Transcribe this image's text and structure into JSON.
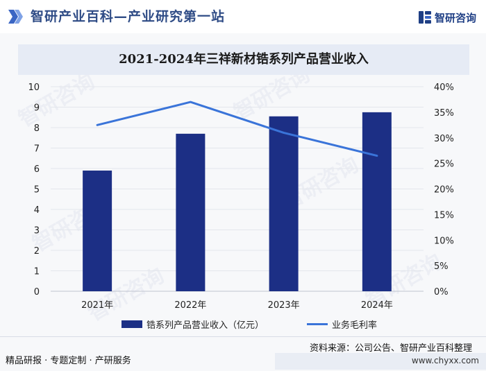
{
  "header": {
    "title": "智研产业百科—产业研究第一站",
    "logo_text": "智研咨询"
  },
  "watermark_text": "智研咨询",
  "chart_data": {
    "type": "bar",
    "title": "2021-2024年三祥新材锆系列产品营业收入",
    "categories": [
      "2021年",
      "2022年",
      "2023年",
      "2024年"
    ],
    "series": [
      {
        "name": "锆系列产品营业收入（亿元）",
        "type": "bar",
        "axis": "left",
        "color": "#1c2f85",
        "values": [
          5.9,
          7.7,
          8.55,
          8.75
        ]
      },
      {
        "name": "业务毛利率",
        "type": "line",
        "axis": "right",
        "color": "#3a74d9",
        "values": [
          32.5,
          37.0,
          31.0,
          26.5
        ]
      }
    ],
    "y_left": {
      "min": 0,
      "max": 10,
      "step": 1,
      "ticks": [
        "0",
        "1",
        "2",
        "3",
        "4",
        "5",
        "6",
        "7",
        "8",
        "9",
        "10"
      ]
    },
    "y_right": {
      "min": 0,
      "max": 40,
      "step": 5,
      "ticks": [
        "0%",
        "5%",
        "10%",
        "15%",
        "20%",
        "25%",
        "30%",
        "35%",
        "40%"
      ]
    },
    "xlabel": "",
    "ylabel": "",
    "legend_position": "bottom"
  },
  "footer": {
    "source": "资料来源：公司公告、智研产业百科整理",
    "left": "精品研报 · 专题定制 · 产研服务",
    "website": "www.chyxx.com"
  }
}
